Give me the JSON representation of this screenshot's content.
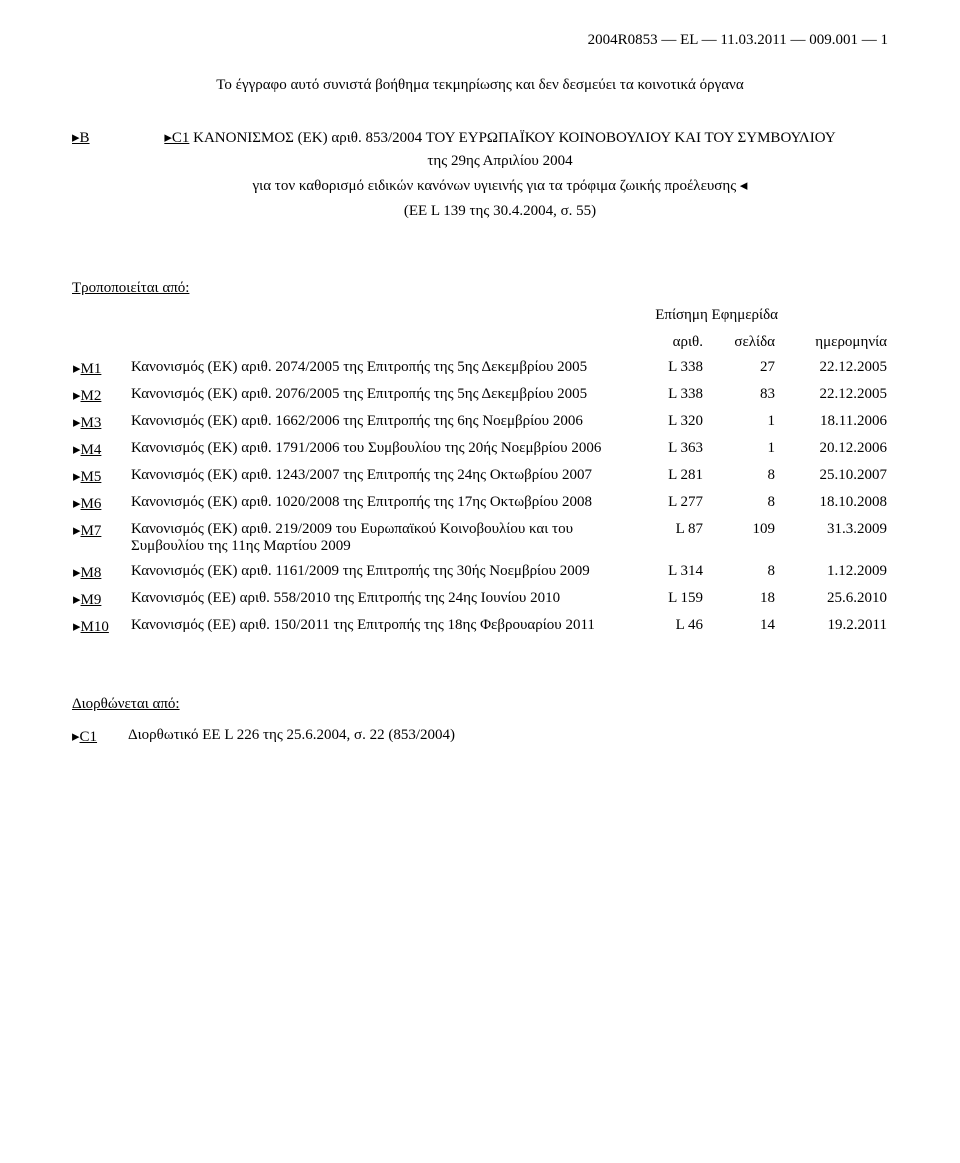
{
  "header": "2004R0853 — EL — 11.03.2011 — 009.001 — 1",
  "intro": "Το έγγραφο αυτό συνιστά βοήθημα τεκμηρίωσης και δεν δεσμεύει τα κοινοτικά όργανα",
  "title_marker": "▸B",
  "title_reg_label": "▸C1",
  "title_reg_text": " ΚΑΝΟΝΙΣΜΟΣ (ΕΚ) αριθ. 853/2004 ΤΟΥ ΕΥΡΩΠΑΪΚΟΥ ΚΟΙΝΟΒΟΥΛΙΟΥ ΚΑΙ ΤΟΥ ΣΥΜΒΟΥΛΙΟΥ",
  "title_sub1": "της 29ης Απριλίου 2004",
  "title_sub2": "για τον καθορισμό ειδικών κανόνων υγιεινής για τα τρόφιμα ζωικής προέλευσης ◂",
  "title_sub3": "(EE L 139 της 30.4.2004, σ. 55)",
  "amended_by_label": "Τροποποιείται από:",
  "oj_label": "Επίσημη Εφημερίδα",
  "columns": {
    "no": "αριθ.",
    "page": "σελίδα",
    "date": "ημερομηνία"
  },
  "amendments": [
    {
      "marker": "M1",
      "desc": "Κανονισμός (ΕΚ) αριθ. 2074/2005 της Επιτροπής της 5ης Δεκεμβρίου 2005",
      "no": "L 338",
      "page": "27",
      "date": "22.12.2005"
    },
    {
      "marker": "M2",
      "desc": "Κανονισμός (ΕΚ) αριθ. 2076/2005 της Επιτροπής της 5ης Δεκεμβρίου 2005",
      "no": "L 338",
      "page": "83",
      "date": "22.12.2005"
    },
    {
      "marker": "M3",
      "desc": "Κανονισμός (ΕΚ) αριθ. 1662/2006 της Επιτροπής της 6ης Νοεμβρίου 2006",
      "no": "L 320",
      "page": "1",
      "date": "18.11.2006"
    },
    {
      "marker": "M4",
      "desc": "Κανονισμός (ΕΚ) αριθ. 1791/2006 του Συμβουλίου της 20ής Νοεμβρίου 2006",
      "no": "L 363",
      "page": "1",
      "date": "20.12.2006"
    },
    {
      "marker": "M5",
      "desc": "Κανονισμός (ΕΚ) αριθ. 1243/2007 της Επιτροπής της 24ης Οκτωβρίου 2007",
      "no": "L 281",
      "page": "8",
      "date": "25.10.2007"
    },
    {
      "marker": "M6",
      "desc": "Κανονισμός (ΕΚ) αριθ. 1020/2008 της Επιτροπής της 17ης Οκτωβρίου 2008",
      "no": "L 277",
      "page": "8",
      "date": "18.10.2008"
    },
    {
      "marker": "M7",
      "desc": "Κανονισμός (ΕΚ) αριθ. 219/2009 του Ευρωπαϊκού Κοινοβουλίου και του Συμβουλίου της 11ης Μαρτίου 2009",
      "no": "L 87",
      "page": "109",
      "date": "31.3.2009"
    },
    {
      "marker": "M8",
      "desc": "Κανονισμός (ΕΚ) αριθ. 1161/2009 της Επιτροπής της 30ής Νοεμβρίου 2009",
      "no": "L 314",
      "page": "8",
      "date": "1.12.2009"
    },
    {
      "marker": "M9",
      "desc": "Κανονισμός (ΕΕ) αριθ. 558/2010 της Επιτροπής της 24ης Ιουνίου 2010",
      "no": "L 159",
      "page": "18",
      "date": "25.6.2010"
    },
    {
      "marker": "M10",
      "desc": "Κανονισμός (ΕΕ) αριθ. 150/2011 της Επιτροπής της 18ης Φεβρουαρίου 2011",
      "no": "L 46",
      "page": "14",
      "date": "19.2.2011"
    }
  ],
  "corrected_by_label": "Διορθώνεται από:",
  "corrections": [
    {
      "marker": "C1",
      "desc": "Διορθωτικό ΕΕ L 226 της 25.6.2004, σ. 22 (853/2004)"
    }
  ]
}
